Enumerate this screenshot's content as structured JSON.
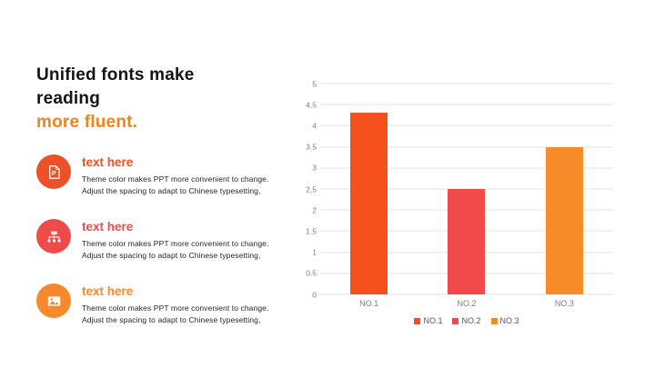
{
  "heading": {
    "line1": "Unified fonts make",
    "line2": "reading",
    "accent": "more fluent.",
    "accent_color": "#EF8422"
  },
  "items": [
    {
      "icon": "ppt-file-icon",
      "color": "#EE5127",
      "title": "text here",
      "body": [
        "Theme color makes PPT more convenient to change.",
        "Adjust the spacing to adapt to Chinese typesetting,"
      ]
    },
    {
      "icon": "org-chart-icon",
      "color": "#F04B4B",
      "title": "text here",
      "body": [
        "Theme color makes PPT more convenient to change.",
        "Adjust the spacing to adapt to Chinese typesetting,"
      ]
    },
    {
      "icon": "image-icon",
      "color": "#F6892B",
      "title": "text here",
      "body": [
        "Theme color makes PPT more convenient to change.",
        "Adjust the spacing to adapt to Chinese typesetting,"
      ]
    }
  ],
  "chart_data": {
    "type": "bar",
    "categories": [
      "NO.1",
      "NO.2",
      "NO.3"
    ],
    "values": [
      4.3,
      2.5,
      3.5
    ],
    "colors": [
      "#F4511E",
      "#F24A4A",
      "#F68C28"
    ],
    "title": "",
    "xlabel": "",
    "ylabel": "",
    "ylim": [
      0,
      5
    ],
    "ytick_step": 0.5,
    "grid": true,
    "grid_color": "#E4E4E4",
    "tick_label_color": "#7F7F7F",
    "legend": [
      "NO.1",
      "NO.2",
      "NO.3"
    ],
    "legend_position": "bottom",
    "legend_text_color": "#595959"
  }
}
